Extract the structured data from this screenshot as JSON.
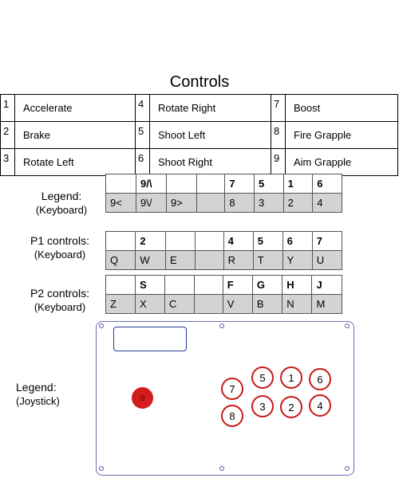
{
  "title": "Controls",
  "controls": [
    [
      {
        "n": "1",
        "label": "Accelerate"
      },
      {
        "n": "4",
        "label": "Rotate Right"
      },
      {
        "n": "7",
        "label": "Boost"
      }
    ],
    [
      {
        "n": "2",
        "label": "Brake"
      },
      {
        "n": "5",
        "label": "Shoot Left"
      },
      {
        "n": "8",
        "label": "Fire Grapple"
      }
    ],
    [
      {
        "n": "3",
        "label": "Rotate Left"
      },
      {
        "n": "6",
        "label": "Shoot Right"
      },
      {
        "n": "9",
        "label": "Aim Grapple"
      }
    ]
  ],
  "legend_keyboard": {
    "line1": "Legend:",
    "line2": "(Keyboard)",
    "top": [
      "",
      "9/\\",
      "",
      "",
      "7",
      "5",
      "1",
      "6"
    ],
    "bottom": [
      "9<",
      "9\\/",
      "9>",
      "",
      "8",
      "3",
      "2",
      "4"
    ]
  },
  "p1": {
    "line1": "P1 controls:",
    "line2": "(Keyboard)",
    "top": [
      "",
      "2",
      "",
      "",
      "4",
      "5",
      "6",
      "7"
    ],
    "bottom": [
      "Q",
      "W",
      "E",
      "",
      "R",
      "T",
      "Y",
      "U"
    ]
  },
  "p2": {
    "line1": "P2 controls:",
    "line2": "(Keyboard)",
    "top": [
      "",
      "S",
      "",
      "",
      "F",
      "G",
      "H",
      "J"
    ],
    "bottom": [
      "Z",
      "X",
      "C",
      "",
      "V",
      "B",
      "N",
      "M"
    ]
  },
  "legend_joystick": {
    "line1": "Legend:",
    "line2": "(Joystick)",
    "stick": "9",
    "buttons": [
      "5",
      "1",
      "6",
      "7",
      "3",
      "2",
      "4",
      "8"
    ]
  }
}
